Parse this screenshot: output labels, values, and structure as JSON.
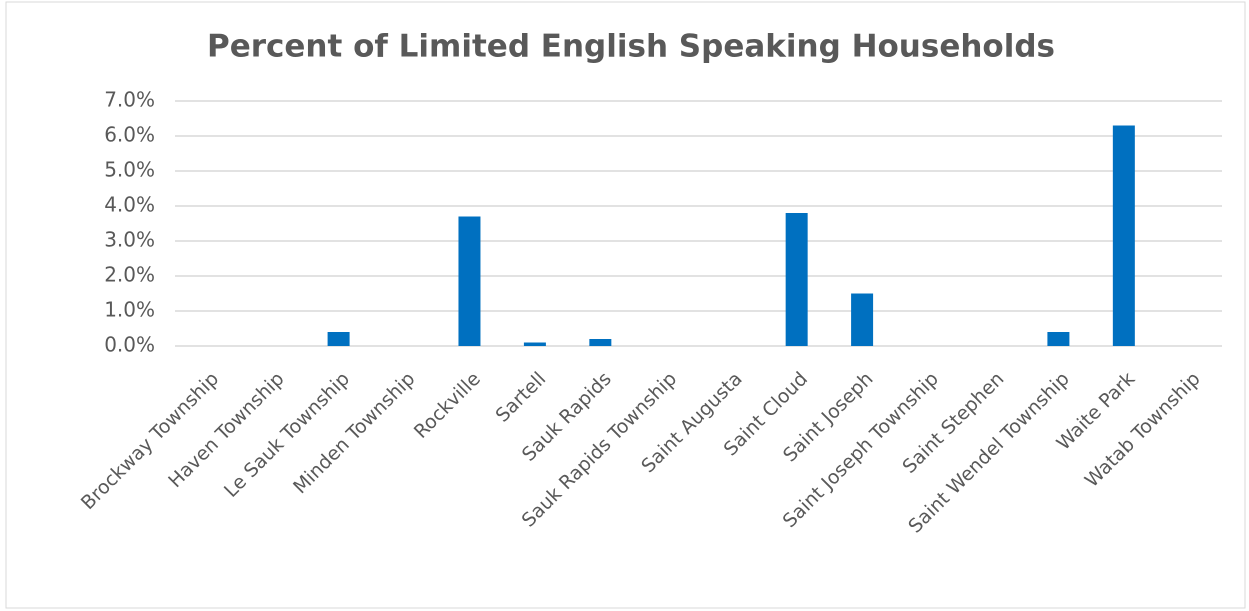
{
  "chart_data": {
    "type": "bar",
    "title": "Percent of Limited English Speaking Households",
    "categories": [
      "Brockway Township",
      "Haven Township",
      "Le Sauk Township",
      "Minden Township",
      "Rockville",
      "Sartell",
      "Sauk Rapids",
      "Sauk Rapids Township",
      "Saint Augusta",
      "Saint Cloud",
      "Saint Joseph",
      "Saint Joseph Township",
      "Saint Stephen",
      "Saint Wendel Township",
      "Waite Park",
      "Watab Township"
    ],
    "values": [
      0,
      0,
      0.4,
      0,
      3.7,
      0.1,
      0.2,
      0,
      0,
      3.8,
      1.5,
      0,
      0,
      0.4,
      6.3,
      0
    ],
    "color": "#0070c0",
    "ylim": [
      0,
      7
    ],
    "yticks": [
      {
        "value": 0,
        "label": "0.0%"
      },
      {
        "value": 1,
        "label": "1.0%"
      },
      {
        "value": 2,
        "label": "2.0%"
      },
      {
        "value": 3,
        "label": "3.0%"
      },
      {
        "value": 4,
        "label": "4.0%"
      },
      {
        "value": 5,
        "label": "5.0%"
      },
      {
        "value": 6,
        "label": "6.0%"
      },
      {
        "value": 7,
        "label": "7.0%"
      }
    ],
    "grid": true
  }
}
